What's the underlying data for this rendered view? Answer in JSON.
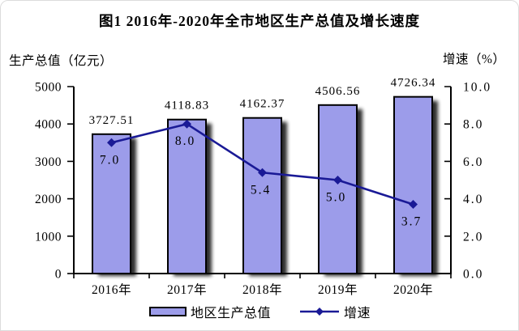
{
  "chart_data": {
    "type": "bar",
    "title": "图1  2016年-2020年全市地区生产总值及增长速度",
    "categories": [
      "2016年",
      "2017年",
      "2018年",
      "2019年",
      "2020年"
    ],
    "series": [
      {
        "name": "地区生产总值",
        "kind": "bar",
        "axis": "left",
        "values": [
          3727.51,
          4118.83,
          4162.37,
          4506.56,
          4726.34
        ]
      },
      {
        "name": "增速",
        "kind": "line",
        "axis": "right",
        "values": [
          7.0,
          8.0,
          5.4,
          5.0,
          3.7
        ]
      }
    ],
    "left_axis": {
      "label": "生产总值（亿元）",
      "min": 0,
      "max": 5000,
      "step": 1000,
      "ticks": [
        "0",
        "1000",
        "2000",
        "3000",
        "4000",
        "5000"
      ]
    },
    "right_axis": {
      "label": "增速（%）",
      "min": 0,
      "max": 10,
      "step": 2,
      "ticks": [
        "0.0",
        "2.0",
        "4.0",
        "6.0",
        "8.0",
        "10.0"
      ]
    },
    "legend": [
      "地区生产总值",
      "增速"
    ],
    "grid": "off",
    "legend_position": "bottom",
    "colors": {
      "bar_fill": "#9c9cea",
      "bar_border": "#000000",
      "bar_shadow": "#000000",
      "line": "#1a1a96",
      "text": "#000000",
      "axis": "#000000"
    }
  }
}
